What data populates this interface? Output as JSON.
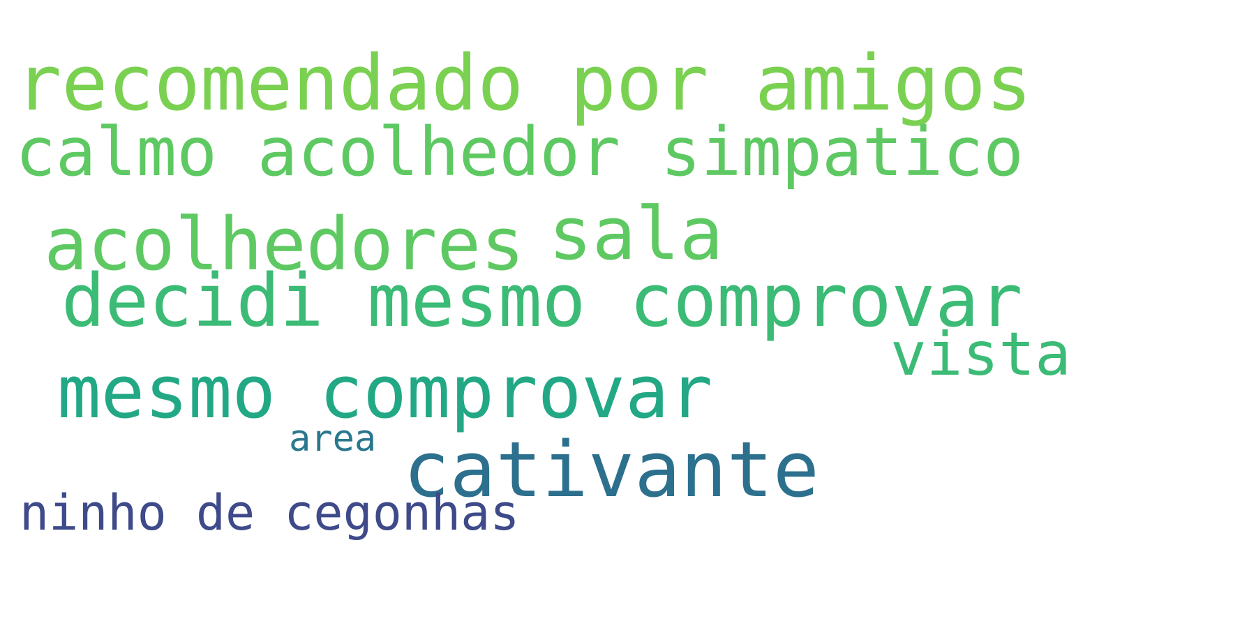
{
  "words": [
    {
      "id": "recomendado",
      "text": "recomendado por amigos",
      "color": "#7ad151"
    },
    {
      "id": "calmo",
      "text": "calmo acolhedor simpatico",
      "color": "#5ec962"
    },
    {
      "id": "acolhedores",
      "text": "acolhedores",
      "color": "#5ec962"
    },
    {
      "id": "sala",
      "text": "sala",
      "color": "#5ec962"
    },
    {
      "id": "decidi",
      "text": "decidi mesmo comprovar",
      "color": "#3bbb75"
    },
    {
      "id": "vista",
      "text": "vista",
      "color": "#3bbb75"
    },
    {
      "id": "mesmo",
      "text": "mesmo comprovar",
      "color": "#22a884"
    },
    {
      "id": "area",
      "text": "area",
      "color": "#2a788e"
    },
    {
      "id": "cativante",
      "text": "cativante",
      "color": "#2d708e"
    },
    {
      "id": "ninho",
      "text": "ninho de cegonhas",
      "color": "#3e4a89"
    }
  ]
}
